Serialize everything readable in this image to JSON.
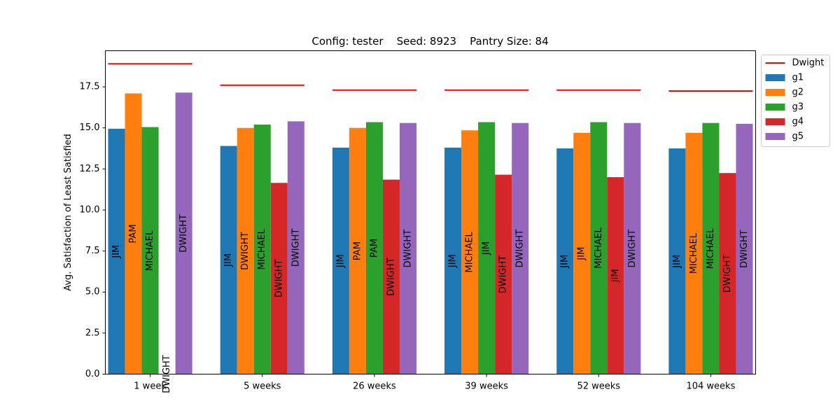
{
  "chart_data": {
    "type": "bar",
    "title": "Config: tester    Seed: 8923    Pantry Size: 84",
    "xlabel": "",
    "ylabel": "Avg. Satisfaction of Least Satisfied",
    "ylim": [
      0,
      19.7
    ],
    "yticks": [
      "0.0",
      "2.5",
      "5.0",
      "7.5",
      "10.0",
      "12.5",
      "15.0",
      "17.5"
    ],
    "categories": [
      "1 week",
      "5 weeks",
      "26 weeks",
      "39 weeks",
      "52 weeks",
      "104 weeks"
    ],
    "grid": false,
    "legend_position": "top-right",
    "series": [
      {
        "name": "g1",
        "color": "#1f77b4",
        "values": [
          14.95,
          13.9,
          13.8,
          13.8,
          13.75,
          13.75
        ],
        "labels": [
          "JIM",
          "JIM",
          "JIM",
          "JIM",
          "JIM",
          "JIM"
        ]
      },
      {
        "name": "g2",
        "color": "#ff7f0e",
        "values": [
          17.1,
          15.0,
          15.0,
          14.85,
          14.7,
          14.7
        ],
        "labels": [
          "PAM",
          "DWIGHT",
          "PAM",
          "MICHAEL",
          "JIM",
          "MICHAEL"
        ]
      },
      {
        "name": "g3",
        "color": "#2ca02c",
        "values": [
          15.05,
          15.2,
          15.35,
          15.35,
          15.35,
          15.3
        ],
        "labels": [
          "MICHAEL",
          "MICHAEL",
          "PAM",
          "JIM",
          "MICHAEL",
          "MICHAEL"
        ]
      },
      {
        "name": "g4",
        "color": "#d62728",
        "values": [
          0.0,
          11.65,
          11.85,
          12.15,
          12.0,
          12.25
        ],
        "labels": [
          "DWIGHT",
          "DWIGHT",
          "DWIGHT",
          "DWIGHT",
          "JIM",
          "DWIGHT"
        ]
      },
      {
        "name": "g5",
        "color": "#9467bd",
        "values": [
          17.15,
          15.4,
          15.3,
          15.3,
          15.3,
          15.25
        ],
        "labels": [
          "DWIGHT",
          "DWIGHT",
          "DWIGHT",
          "DWIGHT",
          "DWIGHT",
          "DWIGHT"
        ]
      }
    ],
    "reference_line": {
      "name": "Dwight",
      "color": "#ff0000",
      "values": [
        18.9,
        17.6,
        17.3,
        17.3,
        17.3,
        17.25
      ]
    }
  }
}
